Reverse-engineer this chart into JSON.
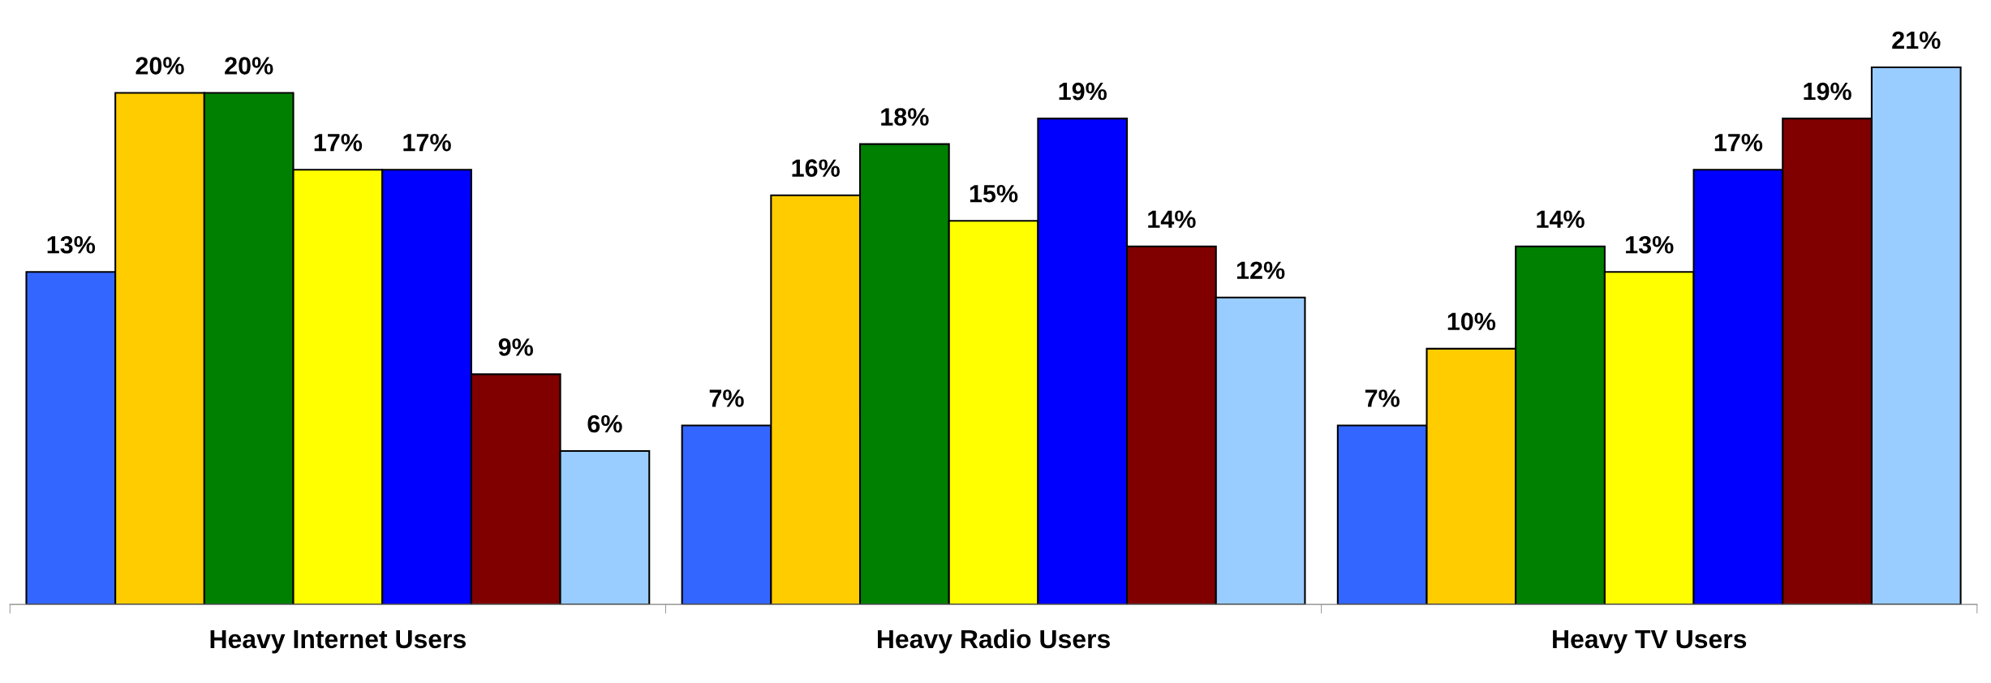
{
  "chart_data": {
    "type": "bar",
    "categories": [
      "Heavy Internet Users",
      "Heavy Radio Users",
      "Heavy TV Users"
    ],
    "series": [
      {
        "color": "#3366ff",
        "values": [
          13,
          7,
          7
        ],
        "value_labels": [
          "13%",
          "7%",
          "7%"
        ]
      },
      {
        "color": "#ffcc00",
        "values": [
          20,
          16,
          10
        ],
        "value_labels": [
          "20%",
          "16%",
          "10%"
        ]
      },
      {
        "color": "#008000",
        "values": [
          20,
          18,
          14
        ],
        "value_labels": [
          "20%",
          "18%",
          "14%"
        ]
      },
      {
        "color": "#ffff00",
        "values": [
          17,
          15,
          13
        ],
        "value_labels": [
          "17%",
          "15%",
          "13%"
        ]
      },
      {
        "color": "#0000ff",
        "values": [
          17,
          19,
          17
        ],
        "value_labels": [
          "17%",
          "19%",
          "17%"
        ]
      },
      {
        "color": "#800000",
        "values": [
          9,
          14,
          19
        ],
        "value_labels": [
          "9%",
          "14%",
          "19%"
        ]
      },
      {
        "color": "#99ccff",
        "values": [
          6,
          12,
          21
        ],
        "value_labels": [
          "6%",
          "12%",
          "21%"
        ]
      }
    ],
    "grid": false,
    "legend": false
  }
}
